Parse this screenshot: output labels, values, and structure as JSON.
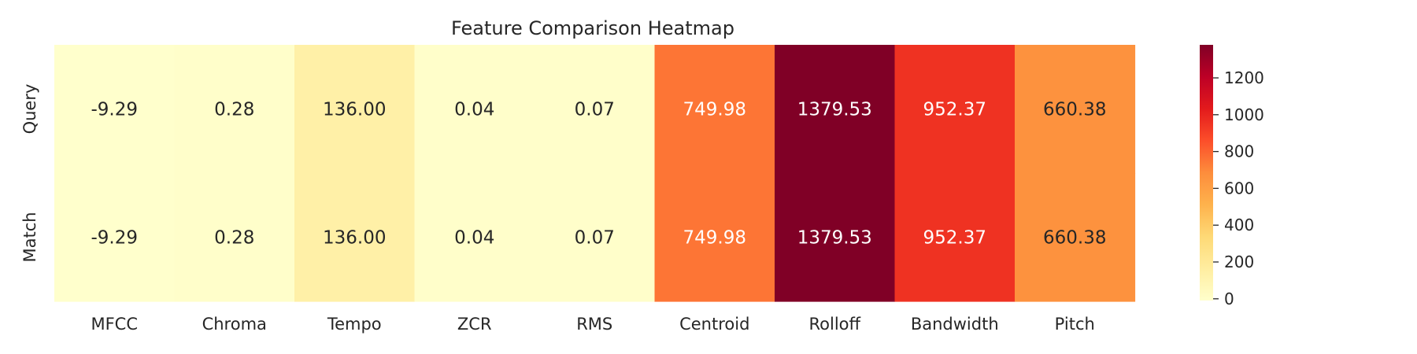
{
  "chart_data": {
    "type": "heatmap",
    "title": "Feature Comparison Heatmap",
    "xlabel": "",
    "ylabel": "",
    "columns": [
      "MFCC",
      "Chroma",
      "Tempo",
      "ZCR",
      "RMS",
      "Centroid",
      "Rolloff",
      "Bandwidth",
      "Pitch"
    ],
    "rows": [
      "Query",
      "Match"
    ],
    "values": [
      [
        -9.29,
        0.28,
        136.0,
        0.04,
        0.07,
        749.98,
        1379.53,
        952.37,
        660.38
      ],
      [
        -9.29,
        0.28,
        136.0,
        0.04,
        0.07,
        749.98,
        1379.53,
        952.37,
        660.38
      ]
    ],
    "value_labels": [
      [
        "-9.29",
        "0.28",
        "136.00",
        "0.04",
        "0.07",
        "749.98",
        "1379.53",
        "952.37",
        "660.38"
      ],
      [
        "-9.29",
        "0.28",
        "136.00",
        "0.04",
        "0.07",
        "749.98",
        "1379.53",
        "952.37",
        "660.38"
      ]
    ],
    "colormap": "YlOrRd",
    "colormap_stops": [
      "#ffffcc",
      "#ffeda0",
      "#fed976",
      "#feb24c",
      "#fd8d3c",
      "#fc4e2a",
      "#e31a1c",
      "#bd0026",
      "#800026"
    ],
    "vmin": -9.29,
    "vmax": 1379.53,
    "colorbar": {
      "ticks": [
        0,
        200,
        400,
        600,
        800,
        1000,
        1200
      ],
      "tick_labels": [
        "0",
        "200",
        "400",
        "600",
        "800",
        "1000",
        "1200"
      ]
    },
    "grid": false,
    "legend": "colorbar-right"
  }
}
